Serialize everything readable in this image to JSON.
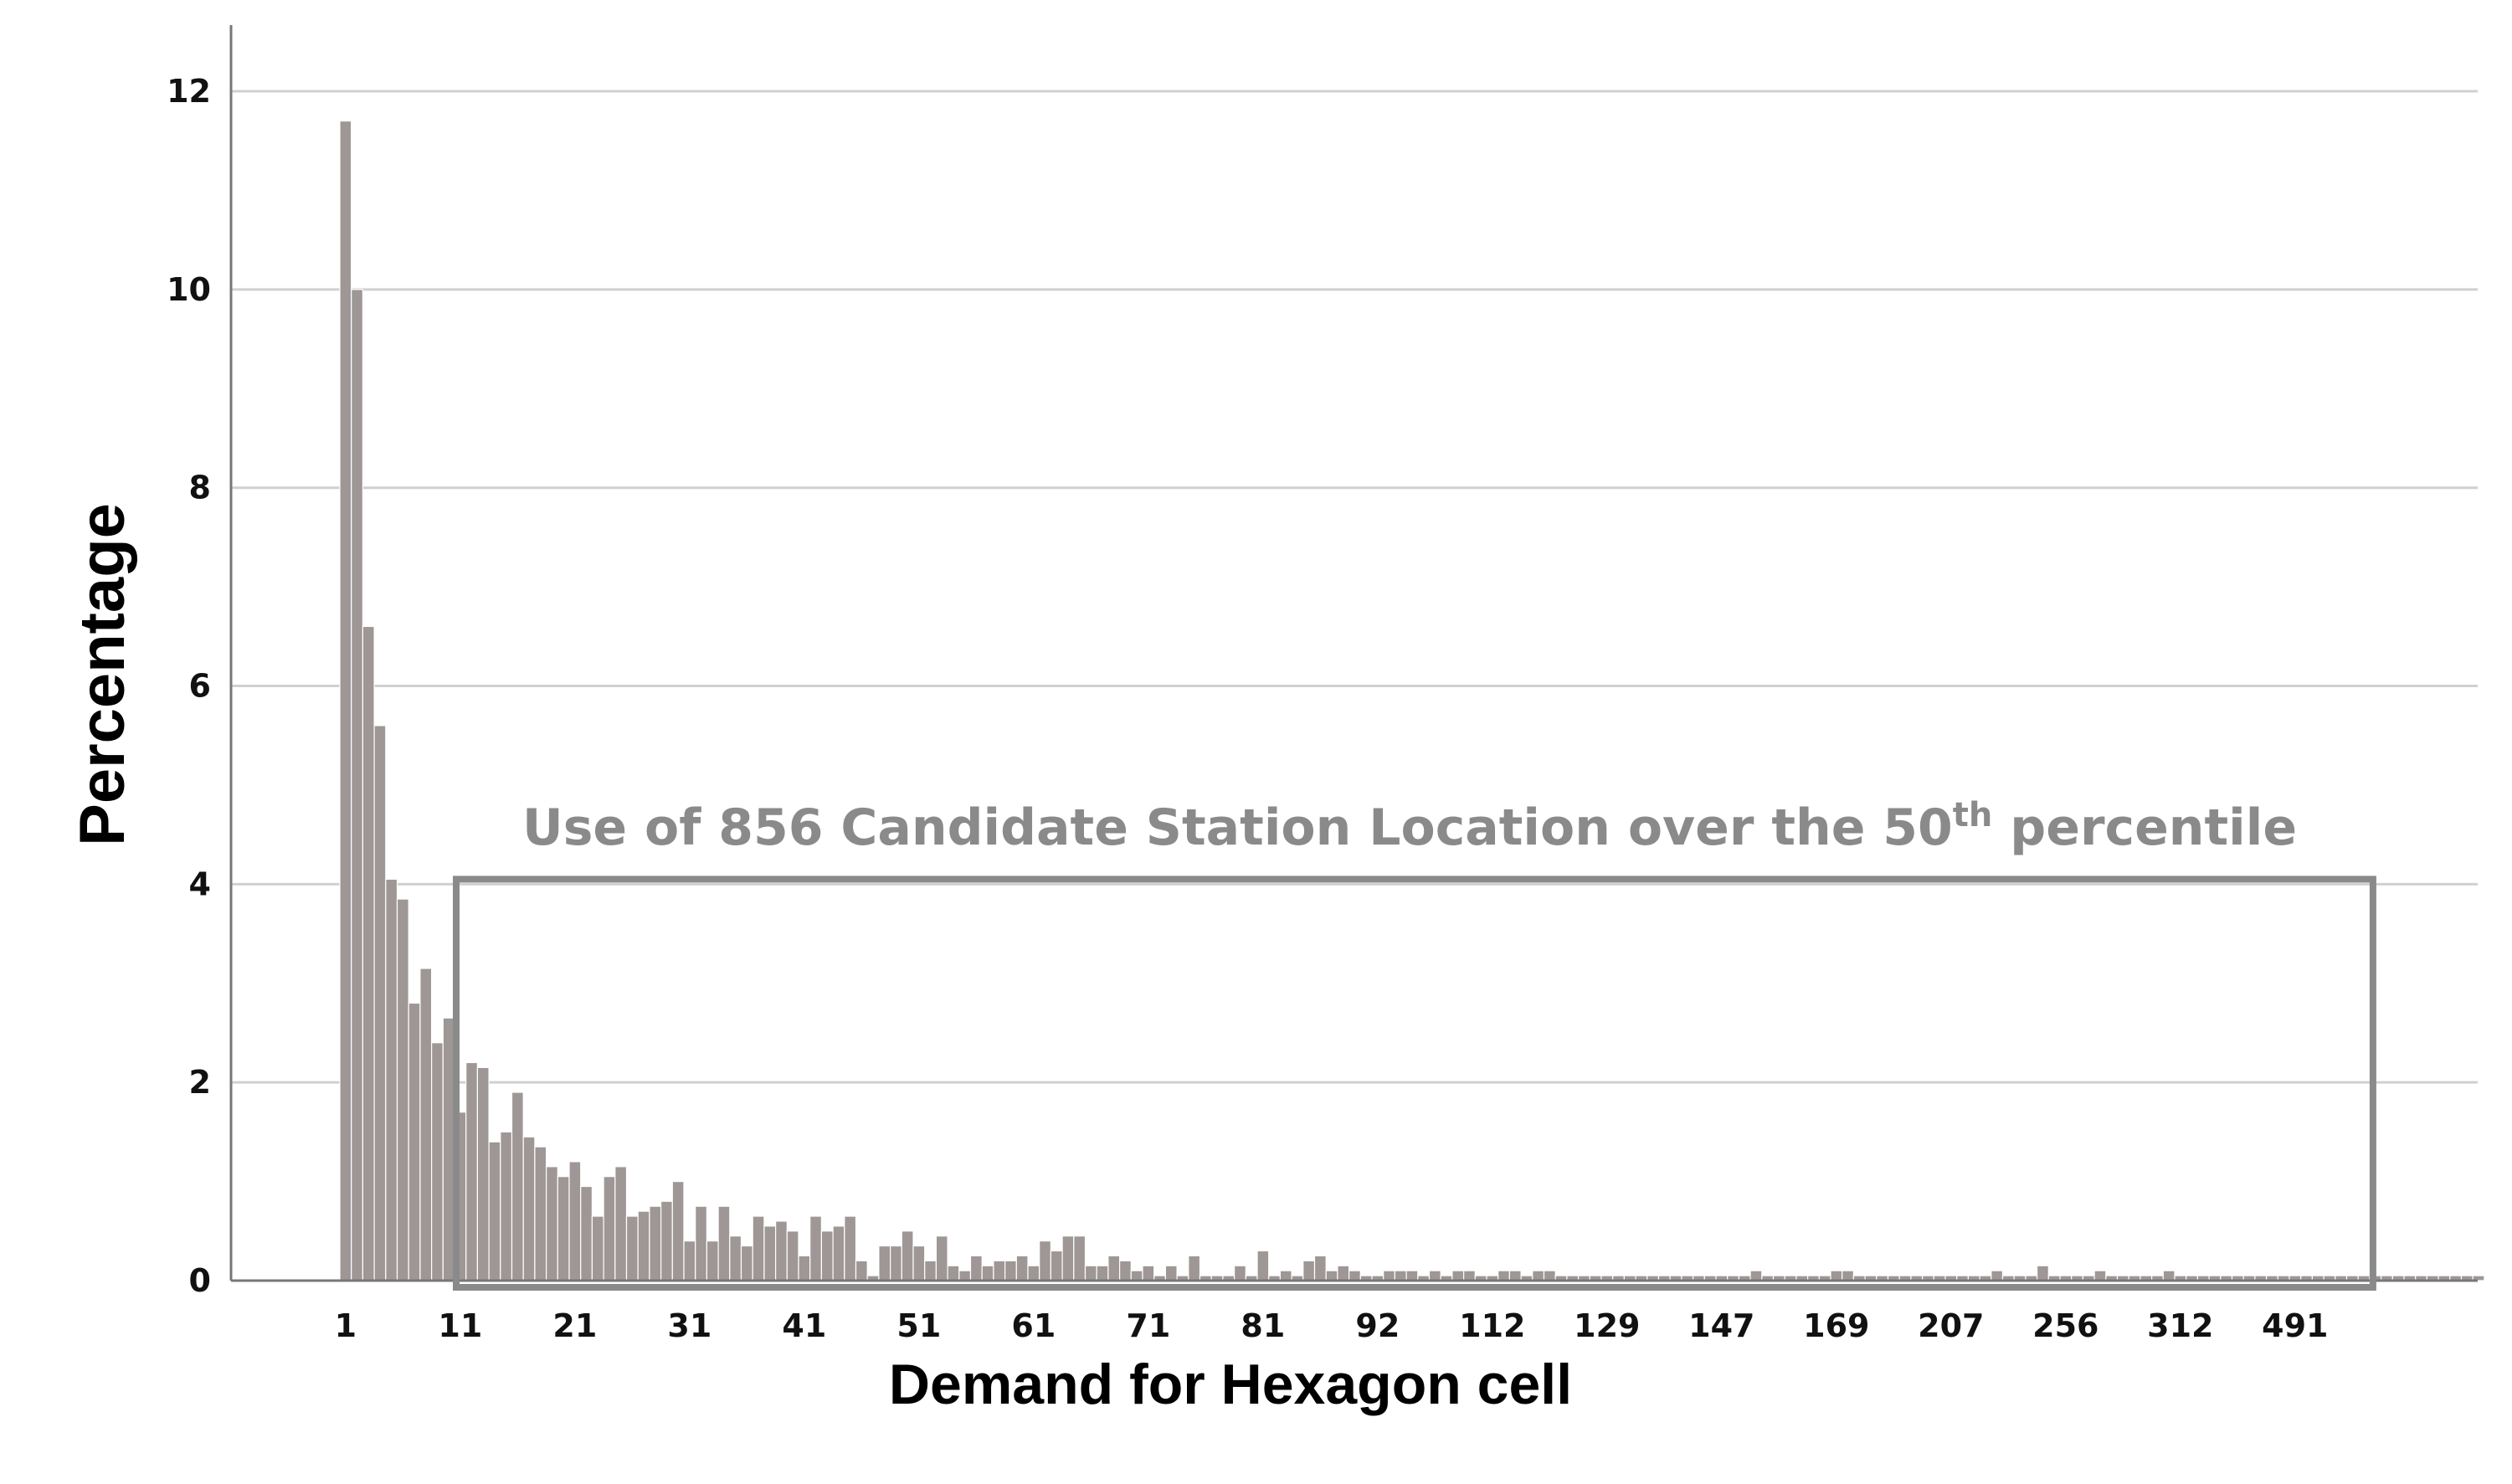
{
  "chart_data": {
    "type": "bar",
    "title": "",
    "xlabel": "Demand for Hexagon cell",
    "ylabel": "Percentage",
    "ylim": [
      0,
      12.6
    ],
    "yticks": [
      0,
      2,
      4,
      6,
      8,
      10,
      12
    ],
    "xtick_labels": [
      "1",
      "11",
      "21",
      "31",
      "41",
      "51",
      "61",
      "71",
      "81",
      "92",
      "112",
      "129",
      "147",
      "169",
      "207",
      "256",
      "312",
      "491"
    ],
    "grid": "horizontal",
    "bar_color": "#9e9796",
    "values": [
      11.7,
      10.0,
      6.6,
      5.6,
      4.05,
      3.85,
      2.8,
      3.15,
      2.4,
      2.65,
      1.7,
      2.2,
      2.15,
      1.4,
      1.5,
      1.9,
      1.45,
      1.35,
      1.15,
      1.05,
      1.2,
      0.95,
      0.65,
      1.05,
      1.15,
      0.65,
      0.7,
      0.75,
      0.8,
      1.0,
      0.4,
      0.75,
      0.4,
      0.75,
      0.45,
      0.35,
      0.65,
      0.55,
      0.6,
      0.5,
      0.25,
      0.65,
      0.5,
      0.55,
      0.65,
      0.2,
      0.05,
      0.35,
      0.35,
      0.5,
      0.35,
      0.2,
      0.45,
      0.15,
      0.1,
      0.25,
      0.15,
      0.2,
      0.2,
      0.25,
      0.15,
      0.4,
      0.3,
      0.45,
      0.45,
      0.15,
      0.15,
      0.25,
      0.2,
      0.1,
      0.15,
      0.05,
      0.15,
      0.05,
      0.25,
      0.05,
      0.05,
      0.05,
      0.15,
      0.05,
      0.3,
      0.05,
      0.1,
      0.05,
      0.2,
      0.25,
      0.1,
      0.15,
      0.1,
      0.05,
      0.05,
      0.1,
      0.1,
      0.1,
      0.05,
      0.1,
      0.05,
      0.1,
      0.1,
      0.05,
      0.05,
      0.1,
      0.1,
      0.05,
      0.1,
      0.1,
      0.05,
      0.05,
      0.05,
      0.05,
      0.05,
      0.05,
      0.05,
      0.05,
      0.05,
      0.05,
      0.05,
      0.05,
      0.05,
      0.05,
      0.05,
      0.05,
      0.05,
      0.1,
      0.05,
      0.05,
      0.05,
      0.05,
      0.05,
      0.05,
      0.1,
      0.1,
      0.05,
      0.05,
      0.05,
      0.05,
      0.05,
      0.05,
      0.05,
      0.05,
      0.05,
      0.05,
      0.05,
      0.05,
      0.1,
      0.05,
      0.05,
      0.05,
      0.15,
      0.05,
      0.05,
      0.05,
      0.05,
      0.1,
      0.05,
      0.05,
      0.05,
      0.05,
      0.05,
      0.1,
      0.05,
      0.05,
      0.05,
      0.05,
      0.05,
      0.05,
      0.05,
      0.05,
      0.05,
      0.05,
      0.05,
      0.05,
      0.05,
      0.05,
      0.05,
      0.05,
      0.05,
      0.05,
      0.05,
      0.05,
      0.05,
      0.05,
      0.05,
      0.05,
      0.05,
      0.05,
      0.05
    ],
    "annotation": {
      "text_before": "Use of 856 Candidate Station Location over the 50",
      "superscript": "th",
      "text_after": " percentile",
      "color": "#8a8a8a",
      "box_from_bar": 10,
      "box_to_bar": 176,
      "box_top_value": 4.05
    }
  }
}
